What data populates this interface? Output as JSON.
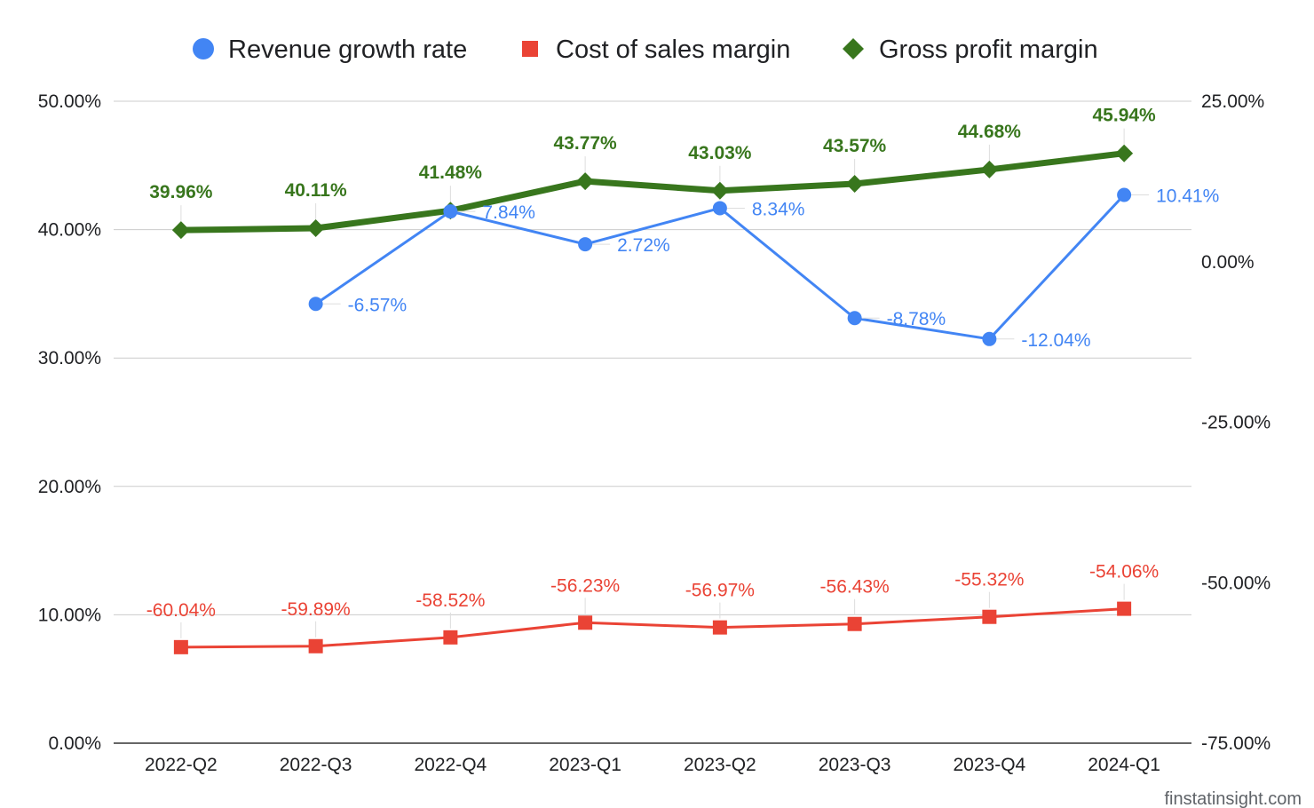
{
  "chart_data": {
    "type": "line",
    "categories": [
      "2022-Q2",
      "2022-Q3",
      "2022-Q4",
      "2023-Q1",
      "2023-Q2",
      "2023-Q3",
      "2023-Q4",
      "2024-Q1"
    ],
    "left_axis": {
      "ylim": [
        0,
        50
      ],
      "ticks": [
        0,
        10,
        20,
        30,
        40,
        50
      ],
      "tick_labels": [
        "0.00%",
        "10.00%",
        "20.00%",
        "30.00%",
        "40.00%",
        "50.00%"
      ]
    },
    "right_axis": {
      "ylim": [
        -75,
        25
      ],
      "ticks": [
        -75,
        -50,
        -25,
        0,
        25
      ],
      "tick_labels": [
        "-75.00%",
        "-50.00%",
        "-25.00%",
        "0.00%",
        "25.00%"
      ]
    },
    "series": [
      {
        "name": "Revenue growth rate",
        "axis": "right",
        "marker": "circle",
        "color": "#4285f4",
        "values": [
          null,
          -6.57,
          7.84,
          2.72,
          8.34,
          -8.78,
          -12.04,
          10.41
        ],
        "labels": [
          "",
          "-6.57%",
          "7.84%",
          "2.72%",
          "8.34%",
          "-8.78%",
          "-12.04%",
          "10.41%"
        ]
      },
      {
        "name": "Cost of sales margin",
        "axis": "right",
        "marker": "square",
        "color": "#ea4335",
        "values": [
          -60.04,
          -59.89,
          -58.52,
          -56.23,
          -56.97,
          -56.43,
          -55.32,
          -54.06
        ],
        "labels": [
          "-60.04%",
          "-59.89%",
          "-58.52%",
          "-56.23%",
          "-56.97%",
          "-56.43%",
          "-55.32%",
          "-54.06%"
        ]
      },
      {
        "name": "Gross profit margin",
        "axis": "left",
        "marker": "diamond",
        "color": "#38761d",
        "values": [
          39.96,
          40.11,
          41.48,
          43.77,
          43.03,
          43.57,
          44.68,
          45.94
        ],
        "labels": [
          "39.96%",
          "40.11%",
          "41.48%",
          "43.77%",
          "43.03%",
          "43.57%",
          "44.68%",
          "45.94%"
        ]
      }
    ],
    "legend_position": "top",
    "grid": true,
    "watermark": "finstatinsight.com"
  }
}
